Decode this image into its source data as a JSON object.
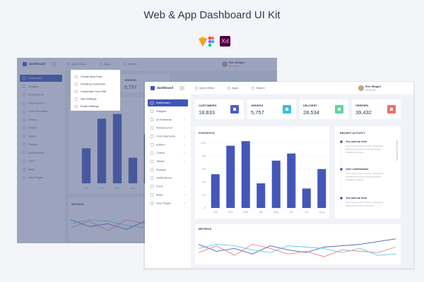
{
  "header": {
    "title": "Web & App Dashboard UI Kit",
    "badge": "Xd"
  },
  "topbar": {
    "brand": "dashboard",
    "menu": [
      "Quick Menu",
      "Apps",
      "Search"
    ],
    "user": "Eric Widget",
    "role": "Developer"
  },
  "navigation": [
    "Dashboard",
    "Widgets",
    "UI Elements",
    "Advanced UI",
    "Form Elements",
    "Editors",
    "Charts",
    "Tables",
    "Popups",
    "Notifications",
    "Icons",
    "Maps",
    "User Pages"
  ],
  "dropdown": [
    "Create New Post",
    "Pending Comments",
    "Customize Your Site",
    "Site Settings",
    "Email Settings"
  ],
  "cards": [
    {
      "label": "CUSTOMERS",
      "value": "18,833",
      "color": "#4a60c6"
    },
    {
      "label": "ORDERS",
      "value": "5,757",
      "color": "#3cbfd8"
    },
    {
      "label": "DELIVERY",
      "value": "28,534",
      "color": "#5ad7a0"
    },
    {
      "label": "VERIFIED",
      "value": "39,432",
      "color": "#f26d6d"
    }
  ],
  "statistics": {
    "title": "STATISTICS",
    "categories": [
      "Jan",
      "Feb",
      "Mar",
      "Apr",
      "May",
      "Jun",
      "Jul",
      "Aug"
    ],
    "values": [
      52,
      96,
      103,
      38,
      73,
      84,
      30,
      60
    ],
    "color": "#4457b9",
    "ylim": [
      0,
      110
    ],
    "yticks": [
      0,
      20,
      40,
      60,
      80,
      100
    ]
  },
  "recent_activity": {
    "title": "RECENT ACTIVITY",
    "items": [
      {
        "title": "You sold an item",
        "lines": [
          "Lorem ipsum dolor sit amet, consectetur",
          "adipiscing elit sed do eiusmod tempor",
          "incididunt ut labore"
        ]
      },
      {
        "title": "User confirmation",
        "lines": [
          "Lorem ipsum dolor sit amet, consectetur",
          "adipiscing elit sed do eiusmod tempor",
          "incididunt ut labore"
        ]
      },
      {
        "title": "You sold an item",
        "lines": [
          "Lorem ipsum dolor sit amet, consectetur",
          "adipiscing elit sed do eiusmod"
        ]
      }
    ]
  },
  "metrics": {
    "title": "METRICS",
    "ylim": [
      0,
      100
    ],
    "series": [
      {
        "color": "#4a5fc1",
        "values": [
          60,
          35,
          45,
          25,
          55,
          40,
          30,
          50,
          55,
          60,
          70,
          80
        ]
      },
      {
        "color": "#f07f86",
        "values": [
          30,
          55,
          20,
          60,
          45,
          25,
          35,
          15,
          40,
          35,
          30,
          50
        ]
      },
      {
        "color": "#5bc9e0",
        "values": [
          45,
          60,
          55,
          40,
          30,
          55,
          50,
          45,
          30,
          45,
          20,
          25
        ]
      }
    ]
  }
}
